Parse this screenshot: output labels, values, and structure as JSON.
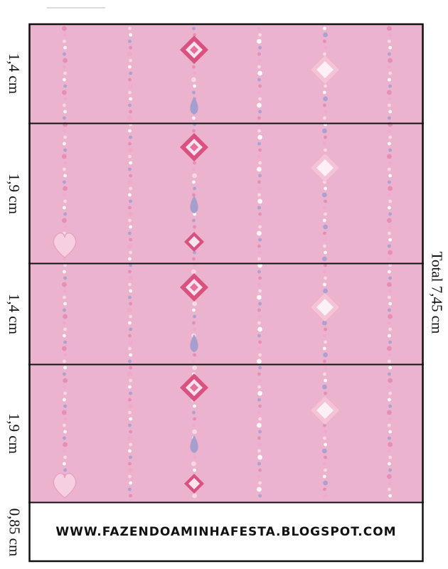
{
  "sections": [
    {
      "height_label": "1,4 cm"
    },
    {
      "height_label": "1,9 cm"
    },
    {
      "height_label": "1,4 cm"
    },
    {
      "height_label": "1,9 cm"
    },
    {
      "height_label": "0,85 cm"
    }
  ],
  "total_label": "Total 7,45 cm",
  "footer": {
    "website": "WWW.FAZENDOAMINHAFESTA.BLOGSPOT.COM"
  },
  "colors": {
    "background_pink": "#ebb3cd",
    "border": "#111111",
    "bead_pink": "#e58ab0",
    "bead_light": "#f6dbe7",
    "bead_lavender": "#a59fd0",
    "gem_dark": "#d9527f",
    "gem_light": "#fbe4ee"
  }
}
